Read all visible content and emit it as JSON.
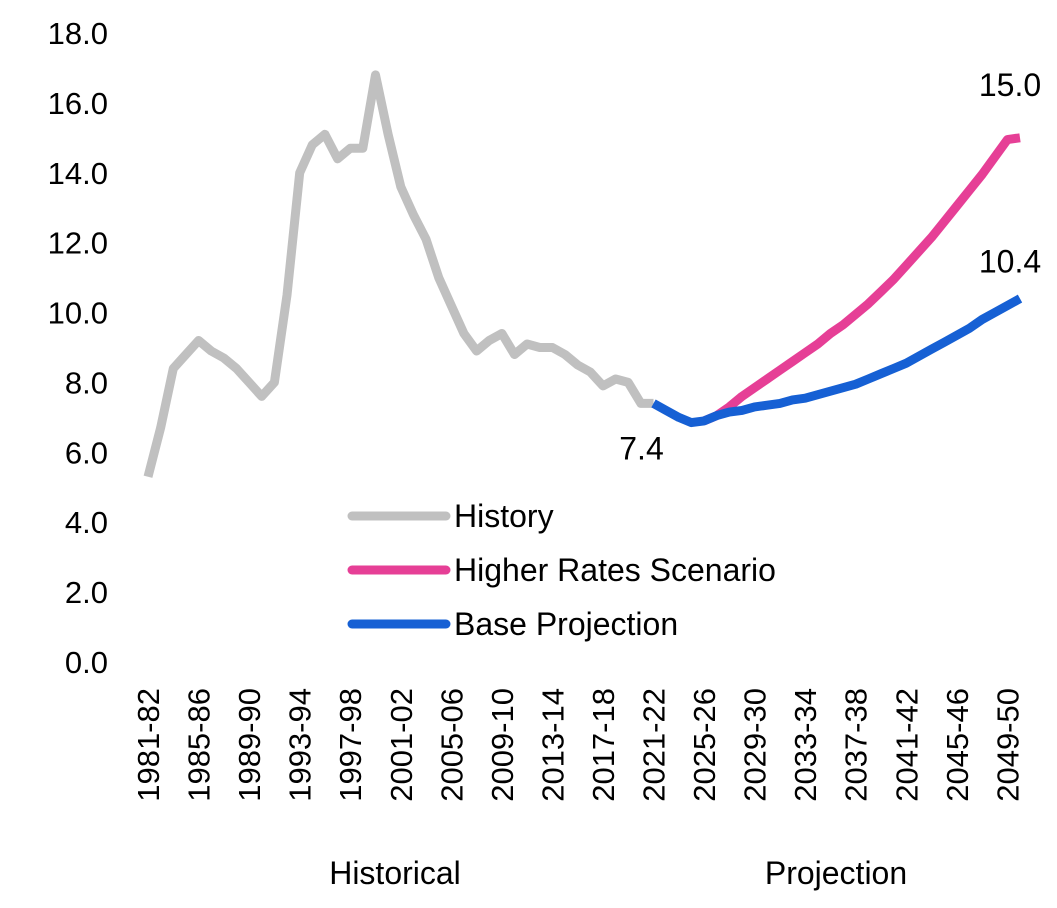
{
  "chart_data": {
    "type": "line",
    "title": "",
    "xlabel": "",
    "ylabel": "",
    "ylim": [
      0,
      18
    ],
    "yticks": [
      "0.0",
      "2.0",
      "4.0",
      "6.0",
      "8.0",
      "10.0",
      "12.0",
      "14.0",
      "16.0",
      "18.0"
    ],
    "grid": false,
    "legend_position": "center-bottom",
    "x_first_year": 1981,
    "x_last_year": 2050,
    "xtick_labels": [
      "1981-82",
      "1985-86",
      "1989-90",
      "1993-94",
      "1997-98",
      "2001-02",
      "2005-06",
      "2009-10",
      "2013-14",
      "2017-18",
      "2021-22",
      "2025-26",
      "2029-30",
      "2033-34",
      "2037-38",
      "2041-42",
      "2045-46",
      "2049-50"
    ],
    "section_labels": {
      "historical": "Historical",
      "projection": "Projection"
    },
    "series": [
      {
        "name": "History",
        "color": "#c0c0c0",
        "x": [
          1981,
          1982,
          1983,
          1984,
          1985,
          1986,
          1987,
          1988,
          1989,
          1990,
          1991,
          1992,
          1993,
          1994,
          1995,
          1996,
          1997,
          1998,
          1999,
          2000,
          2001,
          2002,
          2003,
          2004,
          2005,
          2006,
          2007,
          2008,
          2009,
          2010,
          2011,
          2012,
          2013,
          2014,
          2015,
          2016,
          2017,
          2018,
          2019,
          2020,
          2021
        ],
        "values": [
          5.3,
          6.7,
          8.4,
          8.8,
          9.2,
          8.9,
          8.7,
          8.4,
          8.0,
          7.6,
          8.0,
          10.5,
          14.0,
          14.8,
          15.1,
          14.4,
          14.7,
          14.7,
          16.8,
          15.1,
          13.6,
          12.8,
          12.1,
          11.0,
          10.2,
          9.4,
          8.9,
          9.2,
          9.4,
          8.8,
          9.1,
          9.0,
          9.0,
          8.8,
          8.5,
          8.3,
          7.9,
          8.1,
          8.0,
          7.4,
          7.4
        ]
      },
      {
        "name": "Higher Rates Scenario",
        "color": "#e63f96",
        "x": [
          2025,
          2026,
          2027,
          2028,
          2029,
          2030,
          2031,
          2032,
          2033,
          2034,
          2035,
          2036,
          2037,
          2038,
          2039,
          2040,
          2041,
          2042,
          2043,
          2044,
          2045,
          2046,
          2047,
          2048,
          2049,
          2050
        ],
        "values": [
          6.9,
          7.05,
          7.3,
          7.6,
          7.85,
          8.1,
          8.35,
          8.6,
          8.85,
          9.1,
          9.4,
          9.65,
          9.95,
          10.25,
          10.6,
          10.95,
          11.35,
          11.75,
          12.15,
          12.6,
          13.05,
          13.5,
          13.95,
          14.45,
          14.95,
          15.0
        ]
      },
      {
        "name": "Base Projection",
        "color": "#1660d4",
        "x": [
          2021,
          2022,
          2023,
          2024,
          2025,
          2026,
          2027,
          2028,
          2029,
          2030,
          2031,
          2032,
          2033,
          2034,
          2035,
          2036,
          2037,
          2038,
          2039,
          2040,
          2041,
          2042,
          2043,
          2044,
          2045,
          2046,
          2047,
          2048,
          2049,
          2050
        ],
        "values": [
          7.4,
          7.2,
          7.0,
          6.85,
          6.9,
          7.05,
          7.15,
          7.2,
          7.3,
          7.35,
          7.4,
          7.5,
          7.55,
          7.65,
          7.75,
          7.85,
          7.95,
          8.1,
          8.25,
          8.4,
          8.55,
          8.75,
          8.95,
          9.15,
          9.35,
          9.55,
          9.8,
          10.0,
          10.2,
          10.4
        ]
      }
    ],
    "annotations": [
      {
        "text": "7.4",
        "x": 2021,
        "y": 7.4
      },
      {
        "text": "15.0",
        "x": 2050,
        "y": 15.0
      },
      {
        "text": "10.4",
        "x": 2050,
        "y": 10.4
      }
    ]
  }
}
